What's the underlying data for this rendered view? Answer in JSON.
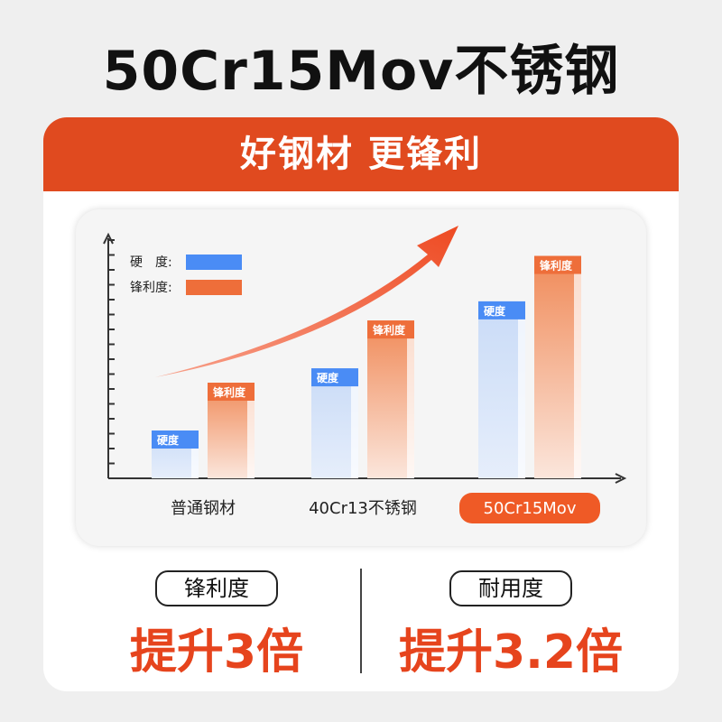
{
  "title": "50Cr15Mov不锈钢",
  "banner": "好钢材 更锋利",
  "chart_data": {
    "type": "bar",
    "categories": [
      "普通钢材",
      "40Cr13不锈钢",
      "50Cr15Mov"
    ],
    "highlight_category": "50Cr15Mov",
    "series": [
      {
        "name": "硬　度",
        "bar_label": "硬度",
        "color": "#4a8cf5",
        "values": [
          20,
          46,
          74
        ]
      },
      {
        "name": "锋利度",
        "bar_label": "锋利度",
        "color": "#ee6e3a",
        "values": [
          40,
          66,
          93
        ]
      }
    ],
    "ylim": [
      0,
      100
    ],
    "legend": "top-left",
    "grid": false,
    "trend_arrow": true,
    "highlight_color": "#ef5a26"
  },
  "stats": [
    {
      "label": "锋利度",
      "value": "提升3倍"
    },
    {
      "label": "耐用度",
      "value": "提升3.2倍"
    }
  ]
}
